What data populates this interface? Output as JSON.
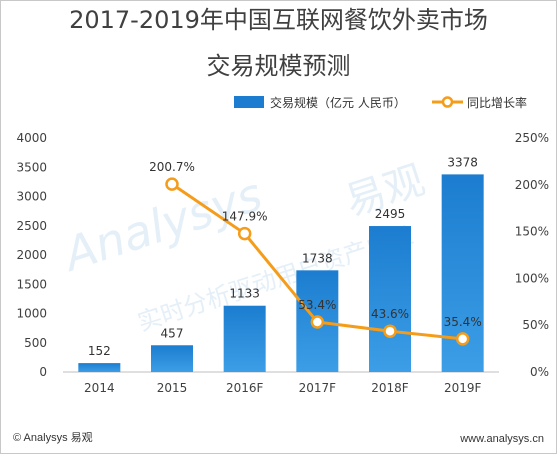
{
  "title_line1": "2017-2019年中国互联网餐饮外卖市场",
  "title_line2": "交易规模预测",
  "watermark": "Analysys 易观 实时分析驱动用户资产成长",
  "footer": {
    "left": "© Analysys 易观",
    "right": "www.analysys.cn"
  },
  "colors": {
    "bar": "#1c7dd0",
    "bar_light": "#3c9ee6",
    "line": "#f59c1a",
    "marker_fill": "#ffffff",
    "text": "#404040"
  },
  "chart_data": {
    "type": "bar+line",
    "categories": [
      "2014",
      "2015",
      "2016F",
      "2017F",
      "2018F",
      "2019F"
    ],
    "series": [
      {
        "name": "交易规模（亿元 人民币）",
        "type": "bar",
        "axis": "left",
        "values": [
          152,
          457,
          1133,
          1738,
          2495,
          3378
        ],
        "labels": [
          "152",
          "457",
          "1133",
          "1738",
          "2495",
          "3378"
        ]
      },
      {
        "name": "同比增长率",
        "type": "line",
        "axis": "right",
        "values": [
          null,
          200.7,
          147.9,
          53.4,
          43.6,
          35.4
        ],
        "labels": [
          "",
          "200.7%",
          "147.9%",
          "53.4%",
          "43.6%",
          "35.4%"
        ]
      }
    ],
    "y_left": {
      "min": 0,
      "max": 4000,
      "ticks": [
        "0",
        "500",
        "1000",
        "1500",
        "2000",
        "2500",
        "3000",
        "3500",
        "4000"
      ]
    },
    "y_right": {
      "min": 0,
      "max": 250,
      "ticks": [
        "0%",
        "50%",
        "100%",
        "150%",
        "200%",
        "250%"
      ]
    },
    "legend_position": "top-right",
    "grid": false
  }
}
